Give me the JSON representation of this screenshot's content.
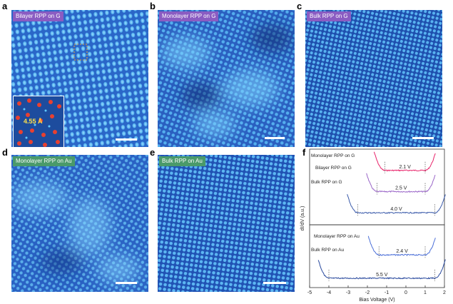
{
  "panels": [
    {
      "letter": "a",
      "title": "Bilayer RPP on G",
      "inset_label": "4.55 Å"
    },
    {
      "letter": "b",
      "title": "Monolayer RPP on G"
    },
    {
      "letter": "c",
      "title": "Bulk RPP on G"
    },
    {
      "letter": "d",
      "title": "Monolayer RPP on Au"
    },
    {
      "letter": "e",
      "title": "Bulk RPP on Au"
    },
    {
      "letter": "f"
    }
  ],
  "colors": {
    "stm_base": "#2a66c8",
    "stm_bright": "#4fb4f0",
    "stm_dark": "#0d2f7a",
    "tag_purple": "#8a5cc2",
    "tag_green": "#4a9a6a",
    "monolayer_g": "#e8236a",
    "bilayer_g": "#9a66c8",
    "bulk_g": "#3a5aaa",
    "monolayer_au": "#4a6ed8",
    "bulk_au": "#2a4a9e"
  },
  "chart_data": {
    "type": "line",
    "xlabel": "Bias Voltage (V)",
    "ylabel": "dI/dV (a.u.)",
    "xlim": [
      -5,
      2
    ],
    "xticks": [
      -5,
      -4,
      -3,
      -2,
      -1,
      0,
      1,
      2
    ],
    "top_panel": {
      "series": [
        {
          "name": "Monolayer RPP on G",
          "gap_label": "2.1 V",
          "vbm": -1.1,
          "cbm": 1.0,
          "baseline": 0.78
        },
        {
          "name": "Bilayer RPP on G",
          "gap_label": "2.5 V",
          "vbm": -1.5,
          "cbm": 1.0,
          "baseline": 0.45
        },
        {
          "name": "Bulk RPP on G",
          "gap_label": "4.0 V",
          "vbm": -2.5,
          "cbm": 1.5,
          "baseline": 0.12
        }
      ]
    },
    "bottom_panel": {
      "series": [
        {
          "name": "Monolayer RPP on Au",
          "gap_label": "2.4 V",
          "vbm": -1.4,
          "cbm": 1.0,
          "baseline": 0.55
        },
        {
          "name": "Bulk RPP on Au",
          "gap_label": "5.5 V",
          "vbm": -4.0,
          "cbm": 1.5,
          "baseline": 0.12
        }
      ]
    }
  }
}
